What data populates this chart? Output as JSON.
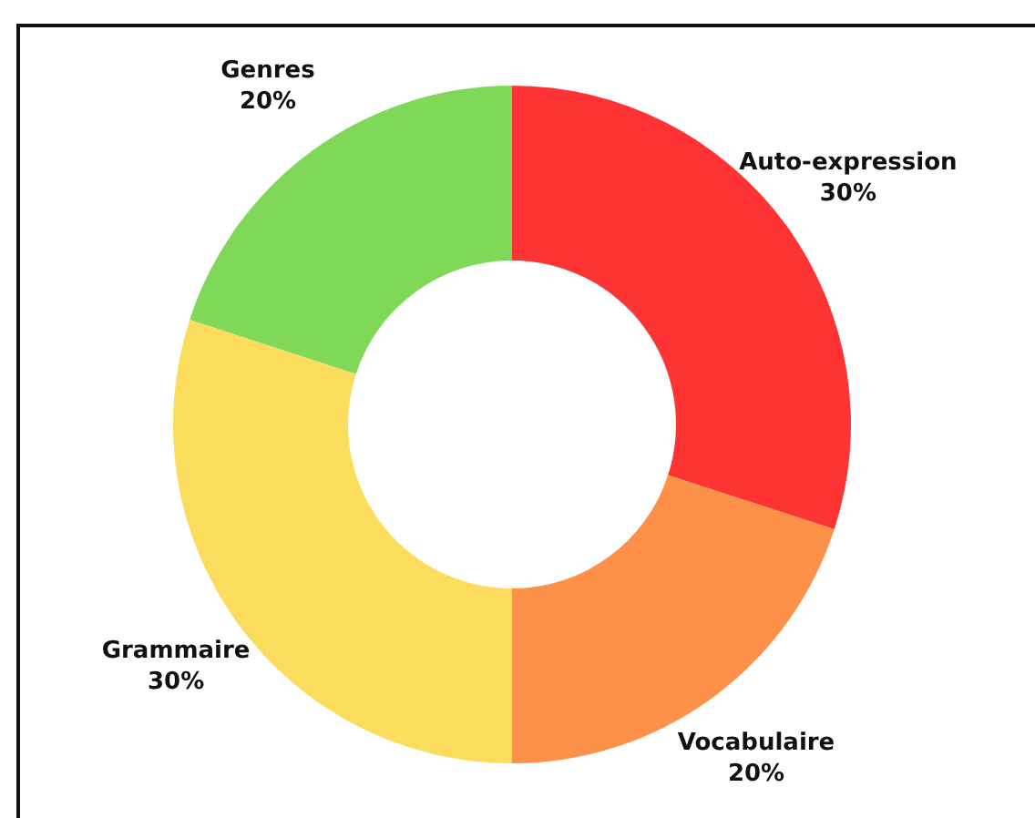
{
  "chart_data": {
    "type": "donut",
    "categories": [
      "Auto-expression",
      "Vocabulaire",
      "Grammaire",
      "Genres"
    ],
    "values": [
      30,
      20,
      30,
      20
    ],
    "value_labels": [
      "30%",
      "20%",
      "30%",
      "20%"
    ],
    "colors": [
      "#fe3333",
      "#fd914a",
      "#fcdc5c",
      "#7fd858"
    ]
  }
}
